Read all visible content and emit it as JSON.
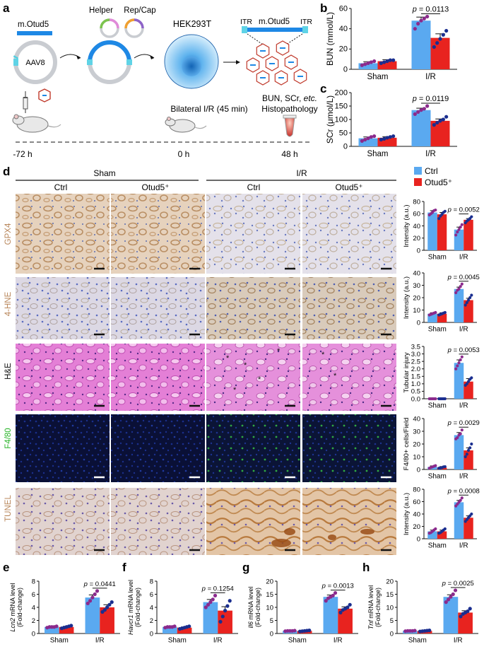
{
  "panel_labels": [
    "a",
    "b",
    "c",
    "d",
    "e",
    "f",
    "g",
    "h"
  ],
  "colors": {
    "ctrl": "#5aa9f0",
    "otud5": "#e8231f",
    "dot_ctrl": "#8b2a8c",
    "dot_otud5": "#1a2e8f",
    "fluor_label": "#2bb52b",
    "ihc_label": "#b8865a"
  },
  "panel_a": {
    "gene_label": "m.Otud5",
    "vector_label": "AAV8",
    "helper_label": "Helper",
    "repcap_label": "Rep/Cap",
    "cell_label": "HEK293T",
    "itr_left": "ITR",
    "itr_right": "ITR",
    "virus_gene_label": "m.Otud5",
    "surgery_label": "Bilateral I/R (45 min)",
    "readout_line1_pre": "BUN, SCr, ",
    "readout_line1_it": "etc.",
    "readout_line2": "Histopathology",
    "timeline": [
      "-72 h",
      "0 h",
      "48 h"
    ]
  },
  "panel_d": {
    "group_sham": "Sham",
    "group_ir": "I/R",
    "col_labels": [
      "Ctrl",
      "Otud5⁺",
      "Ctrl",
      "Otud5⁺"
    ],
    "legend": [
      "Ctrl",
      "Otud5⁺"
    ],
    "row_labels": [
      "GPX4",
      "4-HNE",
      "H&E",
      "F4/80",
      "TUNEL"
    ]
  },
  "chart_data": [
    {
      "panel": "b",
      "type": "bar",
      "categories": [
        "Sham",
        "I/R"
      ],
      "ylabel": "BUN (mmol/L)",
      "ylim": [
        0,
        60
      ],
      "yticks": [
        0,
        20,
        40,
        60
      ],
      "series": [
        {
          "name": "Ctrl",
          "values": [
            6,
            48
          ],
          "err": [
            1.5,
            3.5
          ],
          "points": [
            [
              4,
              5,
              6,
              7,
              8
            ],
            [
              40,
              45,
              48,
              50,
              52
            ]
          ]
        },
        {
          "name": "Otud5⁺",
          "values": [
            8,
            31
          ],
          "err": [
            1.5,
            4
          ],
          "points": [
            [
              6,
              7,
              8,
              9,
              9
            ],
            [
              22,
              26,
              30,
              34,
              38
            ]
          ]
        }
      ],
      "pvalue": "0.0113"
    },
    {
      "panel": "c",
      "type": "bar",
      "categories": [
        "Sham",
        "I/R"
      ],
      "ylabel": "SCr (μmol/L)",
      "ylim": [
        0,
        200
      ],
      "yticks": [
        0,
        50,
        100,
        150,
        200
      ],
      "series": [
        {
          "name": "Ctrl",
          "values": [
            30,
            135
          ],
          "err": [
            5,
            7
          ],
          "points": [
            [
              20,
              25,
              30,
              35,
              38
            ],
            [
              120,
              128,
              135,
              140,
              150
            ]
          ]
        },
        {
          "name": "Otud5⁺",
          "values": [
            32,
            95
          ],
          "err": [
            4,
            7
          ],
          "points": [
            [
              25,
              28,
              32,
              35,
              38
            ],
            [
              80,
              88,
              95,
              100,
              110
            ]
          ]
        }
      ],
      "pvalue": "0.0119"
    },
    {
      "panel": "d-GPX4",
      "type": "bar",
      "categories": [
        "Sham",
        "I/R"
      ],
      "ylabel": "Intensity (a.u.)",
      "ylim": [
        0,
        80
      ],
      "yticks": [
        0,
        20,
        40,
        60,
        80
      ],
      "series": [
        {
          "name": "Ctrl",
          "values": [
            62,
            34
          ],
          "err": [
            3,
            4
          ],
          "points": [
            [
              58,
              60,
              62,
              65,
              66
            ],
            [
              25,
              30,
              34,
              38,
              42
            ]
          ]
        },
        {
          "name": "Otud5⁺",
          "values": [
            59,
            50
          ],
          "err": [
            3,
            2
          ],
          "points": [
            [
              52,
              56,
              59,
              62,
              64
            ],
            [
              45,
              48,
              50,
              52,
              55
            ]
          ]
        }
      ],
      "pvalue": "0.0052"
    },
    {
      "panel": "d-4HNE",
      "type": "bar",
      "categories": [
        "Sham",
        "I/R"
      ],
      "ylabel": "Intensity (a.u.)",
      "ylim": [
        0,
        40
      ],
      "yticks": [
        0,
        10,
        20,
        30,
        40
      ],
      "series": [
        {
          "name": "Ctrl",
          "values": [
            7,
            27
          ],
          "err": [
            0.8,
            1.5
          ],
          "points": [
            [
              6,
              6.5,
              7,
              7.5,
              8
            ],
            [
              24,
              26,
              27,
              29,
              31
            ]
          ]
        },
        {
          "name": "Otud5⁺",
          "values": [
            7,
            18
          ],
          "err": [
            0.8,
            1.5
          ],
          "points": [
            [
              6,
              6.5,
              7,
              7.5,
              8
            ],
            [
              14,
              16,
              18,
              20,
              22
            ]
          ]
        }
      ],
      "pvalue": "0.0045"
    },
    {
      "panel": "d-HE",
      "type": "bar",
      "categories": [
        "Sham",
        "I/R"
      ],
      "ylabel": "Tubular injury",
      "ylim": [
        0,
        3.5
      ],
      "yticks": [
        0,
        0.5,
        1.0,
        1.5,
        2.0,
        2.5,
        3.0,
        3.5
      ],
      "series": [
        {
          "name": "Ctrl",
          "values": [
            0,
            2.4
          ],
          "err": [
            0,
            0.2
          ],
          "points": [
            [
              0,
              0,
              0,
              0,
              0
            ],
            [
              2.0,
              2.2,
              2.4,
              2.6,
              2.8
            ]
          ]
        },
        {
          "name": "Otud5⁺",
          "values": [
            0,
            1.15
          ],
          "err": [
            0,
            0.2
          ],
          "points": [
            [
              0,
              0,
              0,
              0,
              0
            ],
            [
              0.9,
              1.0,
              1.15,
              1.3,
              1.4
            ]
          ]
        }
      ],
      "pvalue": "0.0053"
    },
    {
      "panel": "d-F480",
      "type": "bar",
      "categories": [
        "Sham",
        "I/R"
      ],
      "ylabel": "F4/80+ cells/Field",
      "ylim": [
        0,
        40
      ],
      "yticks": [
        0,
        10,
        20,
        30,
        40
      ],
      "series": [
        {
          "name": "Ctrl",
          "values": [
            2,
            27
          ],
          "err": [
            0.8,
            2
          ],
          "points": [
            [
              1,
              1.5,
              2,
              2.5,
              3
            ],
            [
              24,
              25,
              27,
              28,
              31
            ]
          ]
        },
        {
          "name": "Otud5⁺",
          "values": [
            1.5,
            15
          ],
          "err": [
            0.8,
            2
          ],
          "points": [
            [
              1,
              1.2,
              1.5,
              2,
              2.2
            ],
            [
              10,
              12,
              15,
              17,
              20
            ]
          ]
        }
      ],
      "pvalue": "0.0029"
    },
    {
      "panel": "d-TUNEL",
      "type": "bar",
      "categories": [
        "Sham",
        "I/R"
      ],
      "ylabel": "Intensity (a.u.)",
      "ylim": [
        0,
        80
      ],
      "yticks": [
        0,
        20,
        40,
        60,
        80
      ],
      "series": [
        {
          "name": "Ctrl",
          "values": [
            12,
            59
          ],
          "err": [
            2,
            3
          ],
          "points": [
            [
              9,
              10,
              12,
              14,
              16
            ],
            [
              53,
              56,
              59,
              62,
              66
            ]
          ]
        },
        {
          "name": "Otud5⁺",
          "values": [
            12,
            34
          ],
          "err": [
            2,
            3
          ],
          "points": [
            [
              9,
              10,
              12,
              14,
              16
            ],
            [
              28,
              31,
              34,
              37,
              40
            ]
          ]
        }
      ],
      "pvalue": "0.0008"
    },
    {
      "panel": "e",
      "type": "bar",
      "categories": [
        "Sham",
        "I/R"
      ],
      "ylabel_italic": "Lcn2",
      "ylabel_rest": " mRNA level",
      "ylabel2": "(Fold-change)",
      "ylim": [
        0,
        8
      ],
      "yticks": [
        0,
        2,
        4,
        6,
        8
      ],
      "series": [
        {
          "name": "Ctrl",
          "values": [
            1,
            5.5
          ],
          "err": [
            0.05,
            0.4
          ],
          "points": [
            [
              0.9,
              1,
              1,
              1,
              1.1
            ],
            [
              4.6,
              5,
              5.5,
              6,
              6.5
            ]
          ]
        },
        {
          "name": "Otud5⁺",
          "values": [
            1,
            4.0
          ],
          "err": [
            0.1,
            0.4
          ],
          "points": [
            [
              0.8,
              0.9,
              1,
              1.1,
              1.2
            ],
            [
              3.3,
              3.6,
              4,
              4.4,
              4.8
            ]
          ]
        }
      ],
      "pvalue": "0.0441"
    },
    {
      "panel": "f",
      "type": "bar",
      "categories": [
        "Sham",
        "I/R"
      ],
      "ylabel_italic": "Havcr1",
      "ylabel_rest": " mRNA level",
      "ylabel2": "(Fold-change)",
      "ylim": [
        0,
        8
      ],
      "yticks": [
        0,
        2,
        4,
        6,
        8
      ],
      "series": [
        {
          "name": "Ctrl",
          "values": [
            1,
            4.8
          ],
          "err": [
            0.05,
            0.4
          ],
          "points": [
            [
              0.9,
              1,
              1,
              1,
              1.1
            ],
            [
              4,
              4.4,
              4.8,
              5.2,
              5.8
            ]
          ]
        },
        {
          "name": "Otud5⁺",
          "values": [
            0.9,
            3.5
          ],
          "err": [
            0.1,
            0.6
          ],
          "points": [
            [
              0.7,
              0.8,
              0.9,
              1,
              1.1
            ],
            [
              1.8,
              2.6,
              3.5,
              4.2,
              5
            ]
          ]
        }
      ],
      "pvalue": "0.1254"
    },
    {
      "panel": "g",
      "type": "bar",
      "categories": [
        "Sham",
        "I/R"
      ],
      "ylabel_italic": "Il6",
      "ylabel_rest": " mRNA level",
      "ylabel2": "(Fold-change)",
      "ylim": [
        0,
        20
      ],
      "yticks": [
        0,
        5,
        10,
        15,
        20
      ],
      "series": [
        {
          "name": "Ctrl",
          "values": [
            1,
            14
          ],
          "err": [
            0.05,
            0.7
          ],
          "points": [
            [
              0.9,
              1,
              1,
              1,
              1.1
            ],
            [
              12.5,
              13.5,
              14,
              14.5,
              15.5
            ]
          ]
        },
        {
          "name": "Otud5⁺",
          "values": [
            1,
            9.5
          ],
          "err": [
            0.1,
            0.7
          ],
          "points": [
            [
              0.8,
              0.9,
              1,
              1.1,
              1.2
            ],
            [
              8,
              9,
              9.5,
              10,
              11
            ]
          ]
        }
      ],
      "pvalue": "0.0013"
    },
    {
      "panel": "h",
      "type": "bar",
      "categories": [
        "Sham",
        "I/R"
      ],
      "ylabel_italic": "Tnf",
      "ylabel_rest": " mRNA level",
      "ylabel2": "(Fold-change)",
      "ylim": [
        0,
        20
      ],
      "yticks": [
        0,
        5,
        10,
        15,
        20
      ],
      "series": [
        {
          "name": "Ctrl",
          "values": [
            1,
            14
          ],
          "err": [
            0.05,
            0.8
          ],
          "points": [
            [
              0.9,
              1,
              1,
              1,
              1.1
            ],
            [
              12,
              13,
              14,
              15,
              16.5
            ]
          ]
        },
        {
          "name": "Otud5⁺",
          "values": [
            1,
            8
          ],
          "err": [
            0.1,
            0.7
          ],
          "points": [
            [
              0.8,
              0.9,
              1,
              1.1,
              1.2
            ],
            [
              6.5,
              7.5,
              8,
              8.5,
              9.5
            ]
          ]
        }
      ],
      "pvalue": "0.0025"
    }
  ]
}
